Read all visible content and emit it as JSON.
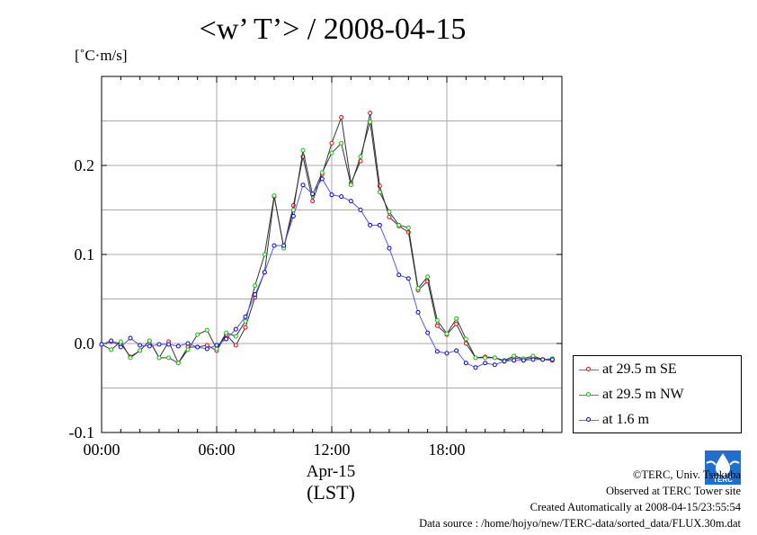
{
  "header": {
    "title": "<w’ T’> / 2008-04-15",
    "unit": "[˚C·m/s]"
  },
  "xaxis": {
    "date_label": "Apr-15",
    "tz_label": "(LST)"
  },
  "legend": {
    "items": [
      {
        "label": "at 29.5 m SE",
        "color": "#ff0000"
      },
      {
        "label": "at 29.5 m NW",
        "color": "#00cc00"
      },
      {
        "label": "at 1.6 m",
        "color": "#0000ff"
      }
    ]
  },
  "credits": {
    "copyright": "©TERC, Univ. Tsukuba",
    "site": "Observed at TERC Tower site",
    "created": "Created Automatically at 2008-04-15/23:55:54",
    "source": "Data source : /home/hojyo/new/TERC-data/sorted_data/FLUX.30m.dat"
  },
  "logo": {
    "text": "TERC"
  },
  "chart_data": {
    "type": "line",
    "xlim": [
      0,
      24
    ],
    "ylim": [
      -0.1,
      0.3
    ],
    "xticks": [
      0,
      6,
      12,
      18
    ],
    "xtick_labels": [
      "00:00",
      "06:00",
      "12:00",
      "18:00"
    ],
    "yticks": [
      -0.1,
      0.0,
      0.1,
      0.2
    ],
    "ytick_labels": [
      "-0.1",
      "0.0",
      "0.1",
      "0.2"
    ],
    "grid": true,
    "legend_position": "right",
    "x": [
      0.0,
      0.5,
      1.0,
      1.5,
      2.0,
      2.5,
      3.0,
      3.5,
      4.0,
      4.5,
      5.0,
      5.5,
      6.0,
      6.5,
      7.0,
      7.5,
      8.0,
      8.5,
      9.0,
      9.5,
      10.0,
      10.5,
      11.0,
      11.5,
      12.0,
      12.5,
      13.0,
      13.5,
      14.0,
      14.5,
      15.0,
      15.5,
      16.0,
      16.5,
      17.0,
      17.5,
      18.0,
      18.5,
      19.0,
      19.5,
      20.0,
      20.5,
      21.0,
      21.5,
      22.0,
      22.5,
      23.0,
      23.5
    ],
    "series": [
      {
        "name": "at 29.5 m SE",
        "color": "#ff0000",
        "values": [
          -0.001,
          0.002,
          0.0,
          -0.015,
          -0.008,
          0.003,
          -0.016,
          0.002,
          -0.022,
          -0.004,
          -0.004,
          -0.002,
          -0.008,
          0.01,
          -0.002,
          0.018,
          0.052,
          0.08,
          0.165,
          0.108,
          0.155,
          0.21,
          0.16,
          0.19,
          0.225,
          0.254,
          0.18,
          0.205,
          0.259,
          0.177,
          0.142,
          0.132,
          0.125,
          0.06,
          0.07,
          0.02,
          0.01,
          0.022,
          0.0,
          -0.016,
          -0.015,
          -0.016,
          -0.02,
          -0.016,
          -0.018,
          -0.016,
          -0.018,
          -0.019
        ]
      },
      {
        "name": "at 29.5 m NW",
        "color": "#00cc00",
        "values": [
          -0.001,
          -0.007,
          0.002,
          -0.016,
          -0.008,
          0.003,
          -0.016,
          -0.016,
          -0.022,
          -0.007,
          0.01,
          0.015,
          -0.006,
          0.012,
          0.008,
          0.025,
          0.065,
          0.1,
          0.166,
          0.107,
          0.15,
          0.217,
          0.167,
          0.192,
          0.214,
          0.225,
          0.178,
          0.21,
          0.249,
          0.17,
          0.148,
          0.133,
          0.13,
          0.062,
          0.075,
          0.026,
          0.011,
          0.028,
          0.005,
          -0.016,
          -0.016,
          -0.016,
          -0.019,
          -0.014,
          -0.017,
          -0.014,
          -0.018,
          -0.017
        ]
      },
      {
        "name": "at 1.6 m",
        "color": "#0000ff",
        "values": [
          -0.001,
          0.003,
          -0.004,
          0.006,
          -0.002,
          -0.003,
          -0.001,
          -0.001,
          -0.003,
          0.0,
          -0.004,
          -0.006,
          -0.002,
          0.005,
          0.016,
          0.03,
          0.055,
          0.08,
          0.11,
          0.11,
          0.143,
          0.178,
          0.168,
          0.185,
          0.167,
          0.165,
          0.16,
          0.15,
          0.133,
          0.133,
          0.107,
          0.077,
          0.073,
          0.035,
          0.012,
          -0.009,
          -0.011,
          -0.008,
          -0.022,
          -0.027,
          -0.022,
          -0.024,
          -0.02,
          -0.019,
          -0.019,
          -0.018,
          -0.018,
          -0.018
        ]
      }
    ]
  }
}
